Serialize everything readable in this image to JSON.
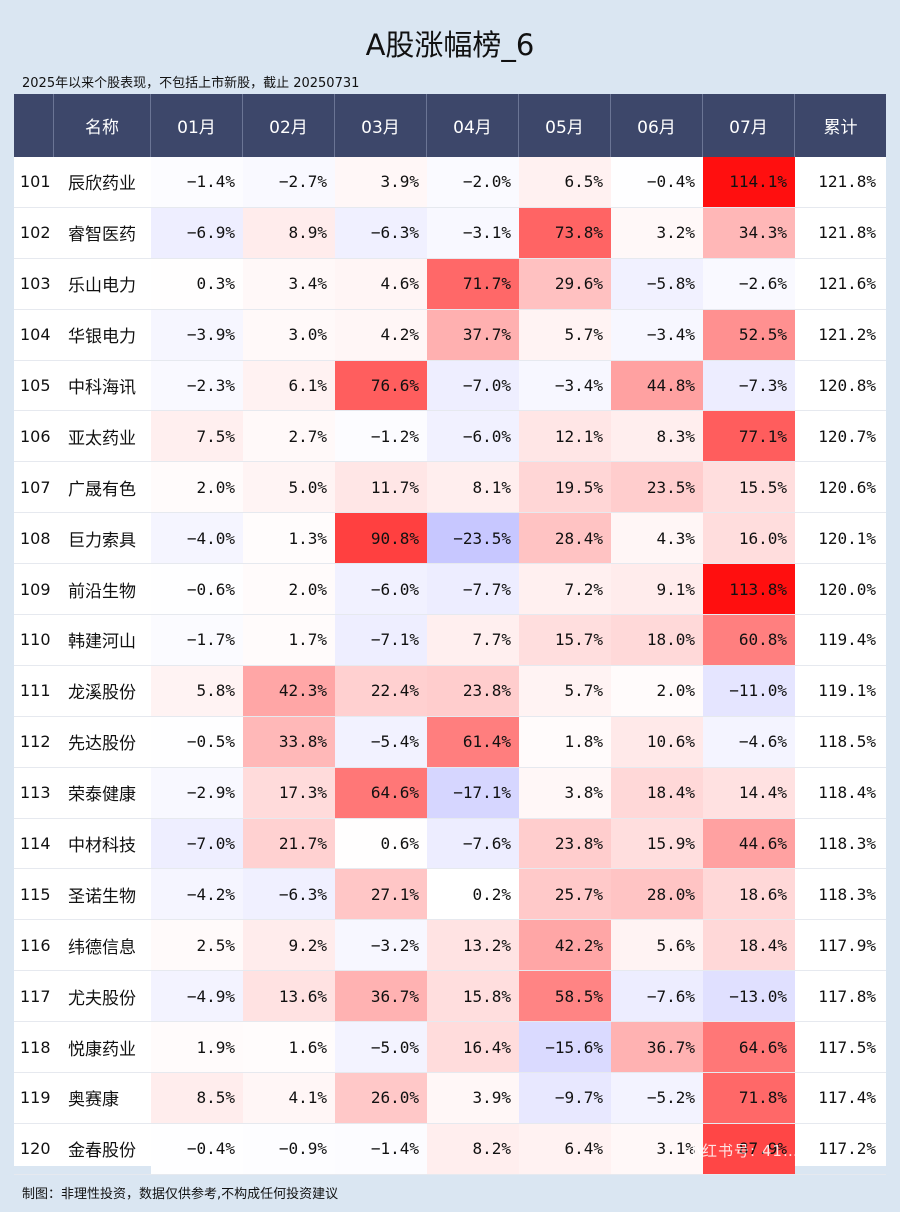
{
  "title": "A股涨幅榜_6",
  "subtitle": "2025年以来个股表现，不包括上市新股，截止 20250731",
  "footer": "制图：非理性投资，数据仅供参考,不构成任何投资建议",
  "watermark": "小红书号: 41…",
  "colors": {
    "header_bg": "#3d476a",
    "positive": "#ff0000",
    "negative": "#3333ff",
    "page_bg": "#dae6f2"
  },
  "chart_data": {
    "type": "table",
    "columns": [
      "",
      "名称",
      "01月",
      "02月",
      "03月",
      "04月",
      "05月",
      "06月",
      "07月",
      "累计"
    ],
    "rows": [
      {
        "rank": "101",
        "name": "辰欣药业",
        "months": [
          -1.4,
          -2.7,
          3.9,
          -2.0,
          6.5,
          -0.4,
          114.1
        ],
        "total": 121.8
      },
      {
        "rank": "102",
        "name": "睿智医药",
        "months": [
          -6.9,
          8.9,
          -6.3,
          -3.1,
          73.8,
          3.2,
          34.3
        ],
        "total": 121.8
      },
      {
        "rank": "103",
        "name": "乐山电力",
        "months": [
          0.3,
          3.4,
          4.6,
          71.7,
          29.6,
          -5.8,
          -2.6
        ],
        "total": 121.6
      },
      {
        "rank": "104",
        "name": "华银电力",
        "months": [
          -3.9,
          3.0,
          4.2,
          37.7,
          5.7,
          -3.4,
          52.5
        ],
        "total": 121.2
      },
      {
        "rank": "105",
        "name": "中科海讯",
        "months": [
          -2.3,
          6.1,
          76.6,
          -7.0,
          -3.4,
          44.8,
          -7.3
        ],
        "total": 120.8
      },
      {
        "rank": "106",
        "name": "亚太药业",
        "months": [
          7.5,
          2.7,
          -1.2,
          -6.0,
          12.1,
          8.3,
          77.1
        ],
        "total": 120.7
      },
      {
        "rank": "107",
        "name": "广晟有色",
        "months": [
          2.0,
          5.0,
          11.7,
          8.1,
          19.5,
          23.5,
          15.5
        ],
        "total": 120.6
      },
      {
        "rank": "108",
        "name": "巨力索具",
        "months": [
          -4.0,
          1.3,
          90.8,
          -23.5,
          28.4,
          4.3,
          16.0
        ],
        "total": 120.1
      },
      {
        "rank": "109",
        "name": "前沿生物",
        "months": [
          -0.6,
          2.0,
          -6.0,
          -7.7,
          7.2,
          9.1,
          113.8
        ],
        "total": 120.0
      },
      {
        "rank": "110",
        "name": "韩建河山",
        "months": [
          -1.7,
          1.7,
          -7.1,
          7.7,
          15.7,
          18.0,
          60.8
        ],
        "total": 119.4
      },
      {
        "rank": "111",
        "name": "龙溪股份",
        "months": [
          5.8,
          42.3,
          22.4,
          23.8,
          5.7,
          2.0,
          -11.0
        ],
        "total": 119.1
      },
      {
        "rank": "112",
        "name": "先达股份",
        "months": [
          -0.5,
          33.8,
          -5.4,
          61.4,
          1.8,
          10.6,
          -4.6
        ],
        "total": 118.5
      },
      {
        "rank": "113",
        "name": "荣泰健康",
        "months": [
          -2.9,
          17.3,
          64.6,
          -17.1,
          3.8,
          18.4,
          14.4
        ],
        "total": 118.4
      },
      {
        "rank": "114",
        "name": "中材科技",
        "months": [
          -7.0,
          21.7,
          0.6,
          -7.6,
          23.8,
          15.9,
          44.6
        ],
        "total": 118.3
      },
      {
        "rank": "115",
        "name": "圣诺生物",
        "months": [
          -4.2,
          -6.3,
          27.1,
          0.2,
          25.7,
          28.0,
          18.6
        ],
        "total": 118.3
      },
      {
        "rank": "116",
        "name": "纬德信息",
        "months": [
          2.5,
          9.2,
          -3.2,
          13.2,
          42.2,
          5.6,
          18.4
        ],
        "total": 117.9
      },
      {
        "rank": "117",
        "name": "尤夫股份",
        "months": [
          -4.9,
          13.6,
          36.7,
          15.8,
          58.5,
          -7.6,
          -13.0
        ],
        "total": 117.8
      },
      {
        "rank": "118",
        "name": "悦康药业",
        "months": [
          1.9,
          1.6,
          -5.0,
          16.4,
          -15.6,
          36.7,
          64.6
        ],
        "total": 117.5
      },
      {
        "rank": "119",
        "name": "奥赛康",
        "months": [
          8.5,
          4.1,
          26.0,
          3.9,
          -9.7,
          -5.2,
          71.8
        ],
        "total": 117.4
      },
      {
        "rank": "120",
        "name": "金春股份",
        "months": [
          -0.4,
          -0.9,
          -1.4,
          8.2,
          6.4,
          3.1,
          87.9
        ],
        "total": 117.2
      }
    ],
    "color_scale": {
      "min": -25,
      "max": 115
    }
  }
}
